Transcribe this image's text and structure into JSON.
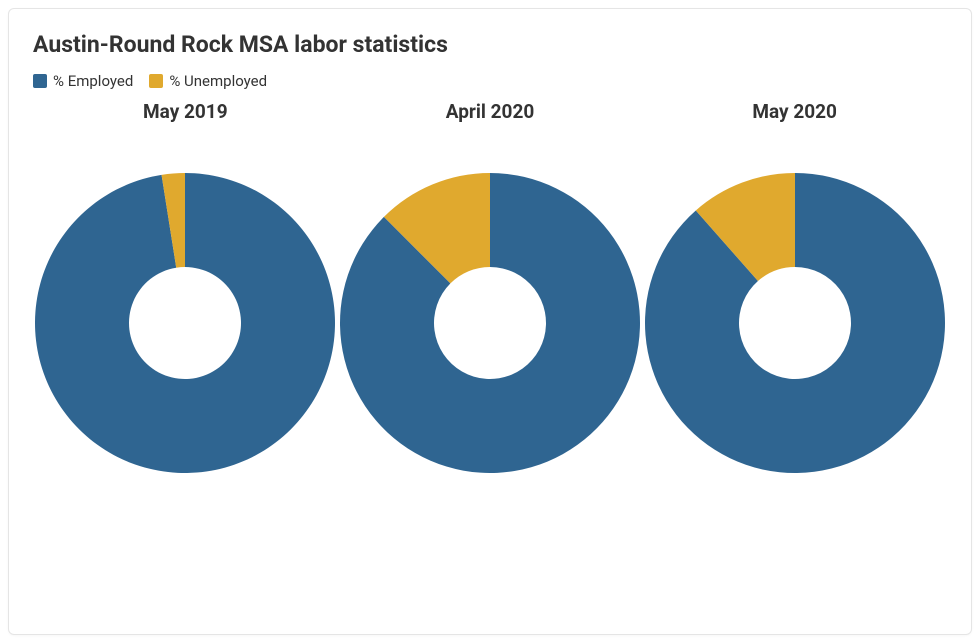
{
  "title": "Austin-Round Rock MSA labor statistics",
  "title_fontsize": 23,
  "title_color": "#333333",
  "background_color": "#ffffff",
  "card_border_color": "#e5e5e5",
  "legend": {
    "items": [
      {
        "label": "% Employed",
        "color": "#2f6591"
      },
      {
        "label": "% Unemployed",
        "color": "#e0a92e"
      }
    ],
    "fontsize": 15,
    "swatch_size": 14
  },
  "charts": {
    "type": "donut",
    "outer_radius": 150,
    "inner_radius": 56,
    "start_angle_deg": -90,
    "label_fontsize": 19,
    "label_fontweight": 700,
    "series_colors": {
      "employed": "#2f6591",
      "unemployed": "#e0a92e"
    },
    "panels": [
      {
        "label": "May 2019",
        "employed": 97.5,
        "unemployed": 2.5
      },
      {
        "label": "April 2020",
        "employed": 87.5,
        "unemployed": 12.5
      },
      {
        "label": "May 2020",
        "employed": 88.5,
        "unemployed": 11.5
      }
    ]
  }
}
